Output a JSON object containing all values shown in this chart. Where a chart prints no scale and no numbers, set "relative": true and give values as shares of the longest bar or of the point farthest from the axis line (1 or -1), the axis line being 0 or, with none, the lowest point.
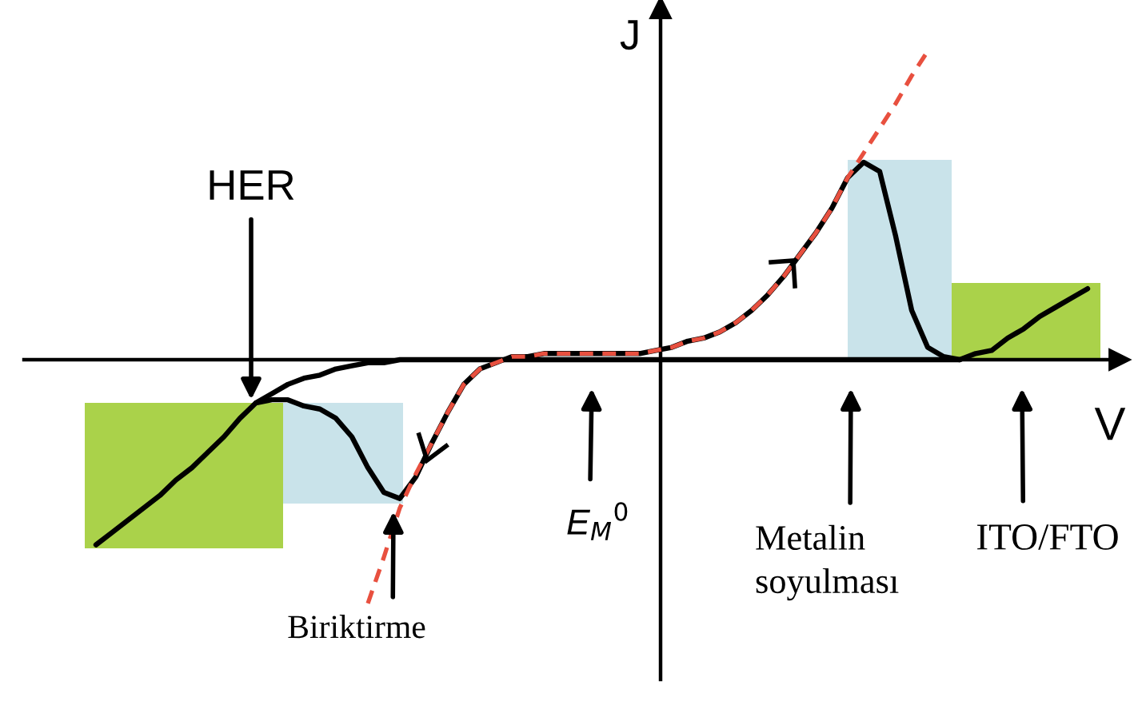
{
  "chart_data": {
    "type": "line",
    "relative": true,
    "xlabel": "V",
    "ylabel": "J",
    "categories": [
      null,
      null,
      null,
      null,
      null,
      null,
      null,
      null,
      null,
      null,
      null,
      null,
      null,
      null,
      null,
      null,
      null,
      null,
      null,
      null,
      null,
      null,
      null,
      null,
      null,
      null,
      null,
      null,
      null,
      null,
      null,
      null,
      null,
      null,
      null,
      null,
      null,
      null,
      null,
      null,
      null,
      null,
      null,
      null,
      null,
      null,
      null,
      null,
      null,
      null,
      null,
      null,
      null,
      null,
      null,
      null,
      null,
      null,
      null,
      null,
      null,
      null,
      null
    ],
    "series": [
      {
        "color": "#000000",
        "values": [
          -0.6,
          -0.56,
          -0.52,
          -0.48,
          -0.44,
          -0.39,
          -0.35,
          -0.3,
          -0.25,
          -0.19,
          -0.14,
          -0.13,
          -0.13,
          -0.15,
          -0.16,
          -0.19,
          -0.25,
          -0.35,
          -0.43,
          -0.45,
          -0.38,
          -0.27,
          -0.17,
          -0.08,
          -0.03,
          -0.01,
          0.01,
          0.01,
          0.02,
          0.02,
          0.02,
          0.02,
          0.02,
          0.02,
          0.02,
          0.03,
          0.04,
          0.06,
          0.07,
          0.09,
          0.12,
          0.16,
          0.21,
          0.27,
          0.34,
          0.41,
          0.49,
          0.59,
          0.64,
          0.61,
          0.4,
          0.16,
          0.04,
          0.01,
          0,
          0.02,
          0.03,
          0.07,
          0.1,
          0.14,
          0.17,
          0.2,
          0.23
        ]
      },
      {
        "color": "#000000",
        "values": [
          null,
          null,
          null,
          null,
          null,
          null,
          null,
          null,
          null,
          null,
          -0.14,
          -0.11,
          -0.08,
          -0.06,
          -0.05,
          -0.03,
          -0.02,
          -0.01,
          -0.01,
          0,
          0,
          0,
          0,
          0,
          0,
          0,
          0,
          0,
          0,
          0,
          0,
          0,
          0,
          0,
          0,
          0,
          0,
          0,
          0,
          0,
          0,
          0,
          0,
          0,
          0,
          0,
          0,
          0,
          0,
          0,
          0,
          0,
          0,
          0,
          0,
          null,
          null,
          null,
          null,
          null,
          null,
          null,
          null
        ]
      },
      {
        "color": "#e8503f",
        "line_style": "dashed",
        "values": [
          null,
          null,
          null,
          null,
          null,
          null,
          null,
          null,
          null,
          null,
          null,
          null,
          null,
          null,
          null,
          null,
          null,
          -0.79,
          -0.64,
          -0.48,
          -0.37,
          -0.27,
          -0.17,
          -0.08,
          -0.03,
          -0.01,
          0.01,
          0.01,
          0.02,
          0.02,
          0.02,
          0.02,
          0.02,
          0.02,
          0.02,
          0.03,
          0.04,
          0.06,
          0.07,
          0.09,
          0.12,
          0.16,
          0.21,
          0.27,
          0.34,
          0.41,
          0.49,
          0.59,
          0.67,
          0.75,
          0.83,
          0.92,
          1.0,
          null,
          null,
          null,
          null,
          null,
          null,
          null,
          null,
          null,
          null
        ]
      }
    ],
    "annotations": [
      "HER",
      "Biriktirme",
      "E$_{M}$$^{0}$",
      "Metalin\nsoyulması",
      "ITO/FTO"
    ]
  }
}
